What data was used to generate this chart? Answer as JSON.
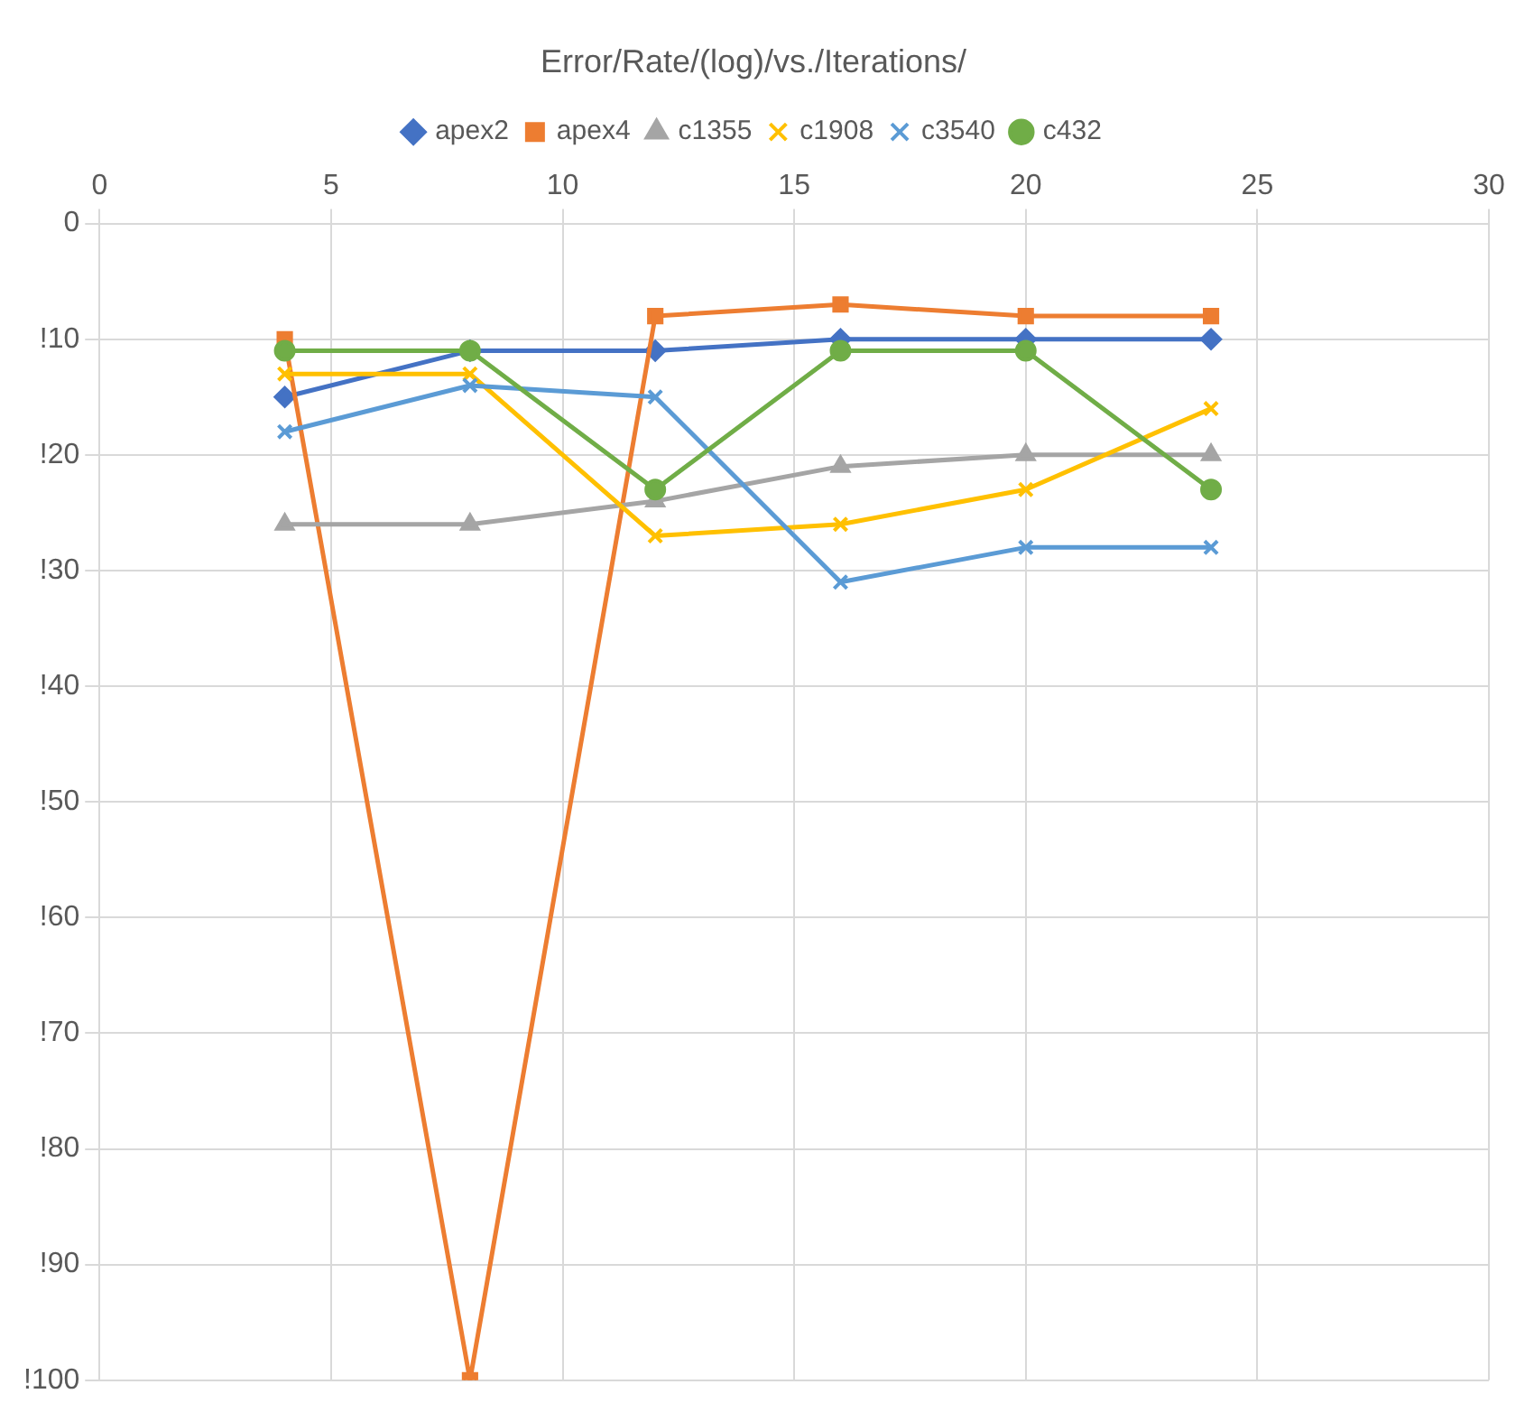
{
  "chart_data": {
    "type": "line",
    "title": "Error/Rate/(log)/vs./Iterations/",
    "x": [
      4,
      8,
      12,
      16,
      20,
      24
    ],
    "series": [
      {
        "name": "apex2",
        "color": "#4472c4",
        "marker": "diamond",
        "values": [
          -15,
          -11,
          -11,
          -10,
          -10,
          -10
        ]
      },
      {
        "name": "apex4",
        "color": "#ed7d31",
        "marker": "square",
        "values": [
          -10,
          -100,
          -8,
          -7,
          -8,
          -8
        ]
      },
      {
        "name": "c1355",
        "color": "#a5a5a5",
        "marker": "triangle",
        "values": [
          -26,
          -26,
          -24,
          -21,
          -20,
          -20
        ]
      },
      {
        "name": "c1908",
        "color": "#ffc000",
        "marker": "cross",
        "values": [
          -13,
          -13,
          -27,
          -26,
          -23,
          -16
        ]
      },
      {
        "name": "c3540",
        "color": "#5b9bd5",
        "marker": "cross",
        "values": [
          -18,
          -14,
          -15,
          -31,
          -28,
          -28
        ]
      },
      {
        "name": "c432",
        "color": "#70ad47",
        "marker": "circle",
        "values": [
          -11,
          -11,
          -23,
          -11,
          -11,
          -23
        ]
      }
    ],
    "xlim": [
      0,
      30
    ],
    "xticks": [
      0,
      5,
      10,
      15,
      20,
      25,
      30
    ],
    "ylim": [
      -100,
      0
    ],
    "yticks": [
      0,
      {
        "value": -10,
        "label": "!10"
      },
      {
        "value": -20,
        "label": "!20"
      },
      {
        "value": -30,
        "label": "!30"
      },
      {
        "value": -40,
        "label": "!40"
      },
      {
        "value": -50,
        "label": "!50"
      },
      {
        "value": -60,
        "label": "!60"
      },
      {
        "value": -70,
        "label": "!70"
      },
      {
        "value": -80,
        "label": "!80"
      },
      {
        "value": -90,
        "label": "!90"
      },
      {
        "value": -100,
        "label": "!100"
      }
    ],
    "grid": true,
    "legend": "top",
    "line_style": "solid"
  }
}
